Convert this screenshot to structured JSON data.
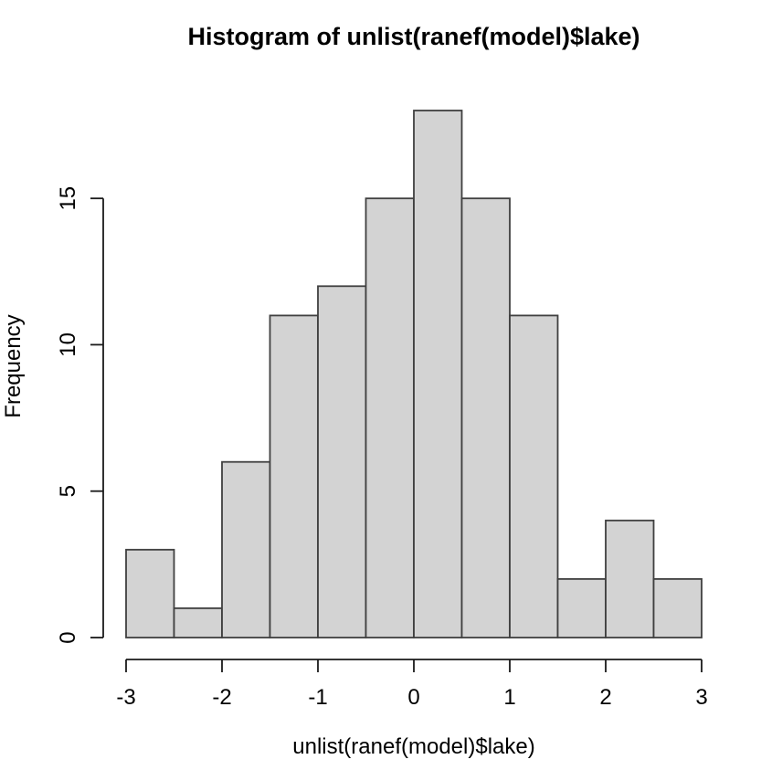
{
  "chart_data": {
    "type": "bar",
    "subtype": "histogram",
    "title": "Histogram of unlist(ranef(model)$lake)",
    "xlabel": "unlist(ranef(model)$lake)",
    "ylabel": "Frequency",
    "bin_edges": [
      -3,
      -2.5,
      -2,
      -1.5,
      -1,
      -0.5,
      0,
      0.5,
      1,
      1.5,
      2,
      2.5,
      3
    ],
    "counts": [
      3,
      1,
      6,
      11,
      12,
      15,
      18,
      15,
      11,
      2,
      4,
      2
    ],
    "x_ticks": [
      -3,
      -2,
      -1,
      0,
      1,
      2,
      3
    ],
    "x_tick_labels": [
      "-3",
      "-2",
      "-1",
      "0",
      "1",
      "2",
      "3"
    ],
    "y_ticks": [
      0,
      5,
      10,
      15
    ],
    "y_tick_labels": [
      "0",
      "5",
      "10",
      "15"
    ],
    "xlim": [
      -3,
      3
    ],
    "ylim": [
      0,
      18
    ],
    "y_axis_extent": [
      0,
      15
    ],
    "grid": false,
    "legend": null,
    "colors": {
      "bar_fill": "#d3d3d3",
      "bar_border": "#404040",
      "axis": "#1a1a1a",
      "text": "#000000",
      "background": "#ffffff"
    }
  }
}
